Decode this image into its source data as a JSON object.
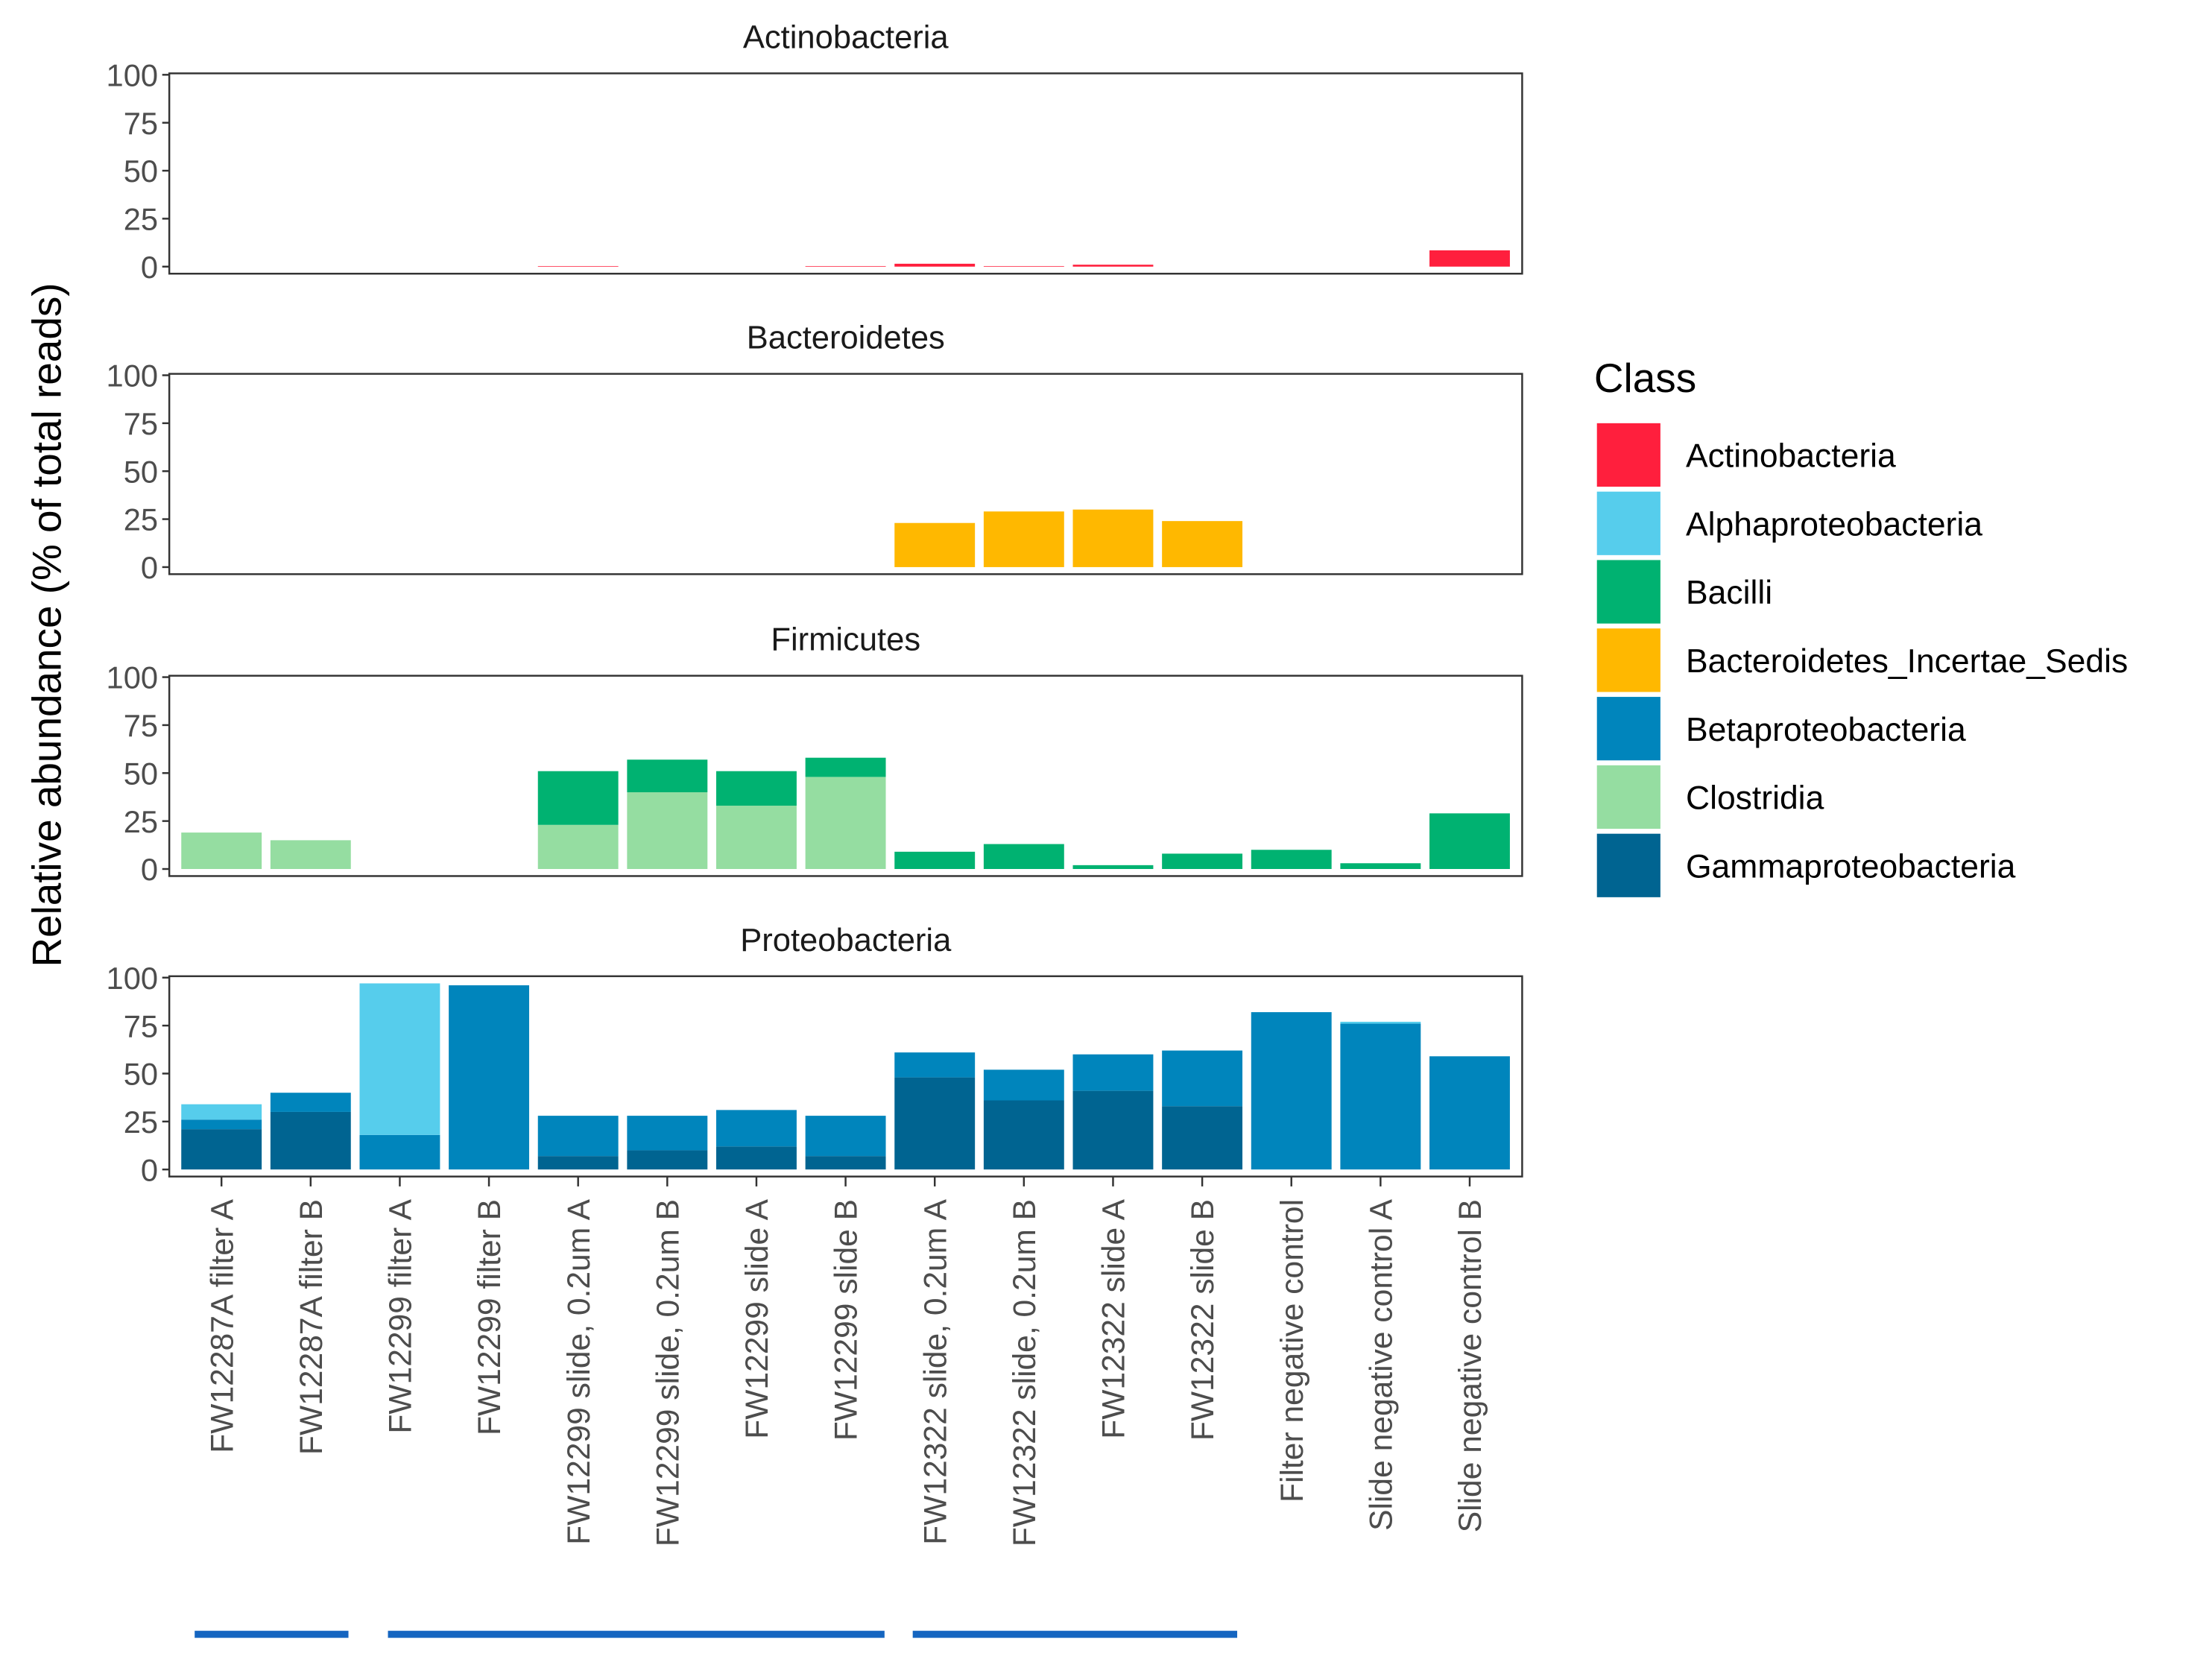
{
  "chart_data": {
    "type": "bar",
    "stacked": true,
    "facet_by": "Phylum",
    "ylabel": "Relative abundance (% of total reads)",
    "xlabel": "",
    "ylim": [
      0,
      100
    ],
    "yticks": [
      "0",
      "25",
      "50",
      "75",
      "100"
    ],
    "categories": [
      "FW12287A filter A",
      "FW12287A filter B",
      "FW12299 filter A",
      "FW12299 filter B",
      "FW12299 slide, 0.2um A",
      "FW12299 slide, 0.2um B",
      "FW12299 slide A",
      "FW12299 slide B",
      "FW12322 slide, 0.2um A",
      "FW12322 slide, 0.2um B",
      "FW12322 slide A",
      "FW12322 slide B",
      "Filter negative control",
      "Slide negative control A",
      "Slide negative control B"
    ],
    "legend": {
      "title": "Class",
      "position": "right",
      "entries": [
        {
          "name": "Actinobacteria",
          "color": "#FF1F3D"
        },
        {
          "name": "Alphaproteobacteria",
          "color": "#56CDEC"
        },
        {
          "name": "Bacilli",
          "color": "#00B271"
        },
        {
          "name": "Bacteroidetes_Incertae_Sedis",
          "color": "#FFB800"
        },
        {
          "name": "Betaproteobacteria",
          "color": "#0085BC"
        },
        {
          "name": "Clostridia",
          "color": "#95DDA1"
        },
        {
          "name": "Gammaproteobacteria",
          "color": "#006491"
        }
      ]
    },
    "panels": [
      {
        "title": "Actinobacteria",
        "series": [
          {
            "name": "Actinobacteria",
            "values": [
              0,
              0,
              0,
              0,
              0.3,
              0,
              0,
              0.3,
              1.5,
              0.3,
              1,
              0,
              0,
              0,
              8.5
            ]
          }
        ]
      },
      {
        "title": "Bacteroidetes",
        "series": [
          {
            "name": "Bacteroidetes_Incertae_Sedis",
            "values": [
              0,
              0,
              0,
              0,
              0,
              0,
              0,
              0,
              23,
              29,
              30,
              24,
              0,
              0,
              0
            ]
          }
        ]
      },
      {
        "title": "Firmicutes",
        "series": [
          {
            "name": "Clostridia",
            "values": [
              19,
              15,
              0,
              0,
              23,
              40,
              33,
              48,
              0,
              0,
              0,
              0,
              0,
              0,
              0
            ]
          },
          {
            "name": "Bacilli",
            "values": [
              0,
              0,
              0,
              0,
              28,
              17,
              18,
              10,
              9,
              13,
              2,
              8,
              10,
              3,
              29
            ]
          }
        ]
      },
      {
        "title": "Proteobacteria",
        "series": [
          {
            "name": "Gammaproteobacteria",
            "values": [
              21,
              30,
              0,
              0,
              7,
              10,
              12,
              7,
              48,
              36,
              41,
              33,
              0,
              0,
              0
            ]
          },
          {
            "name": "Betaproteobacteria",
            "values": [
              5,
              10,
              18,
              96,
              21,
              18,
              19,
              21,
              13,
              16,
              19,
              29,
              82,
              76,
              59
            ]
          },
          {
            "name": "Alphaproteobacteria",
            "values": [
              8,
              0,
              79,
              0,
              0,
              0,
              0,
              0,
              0,
              0,
              0,
              0,
              0,
              1,
              0
            ]
          }
        ]
      }
    ],
    "group_bars_color": "#1565C0"
  }
}
